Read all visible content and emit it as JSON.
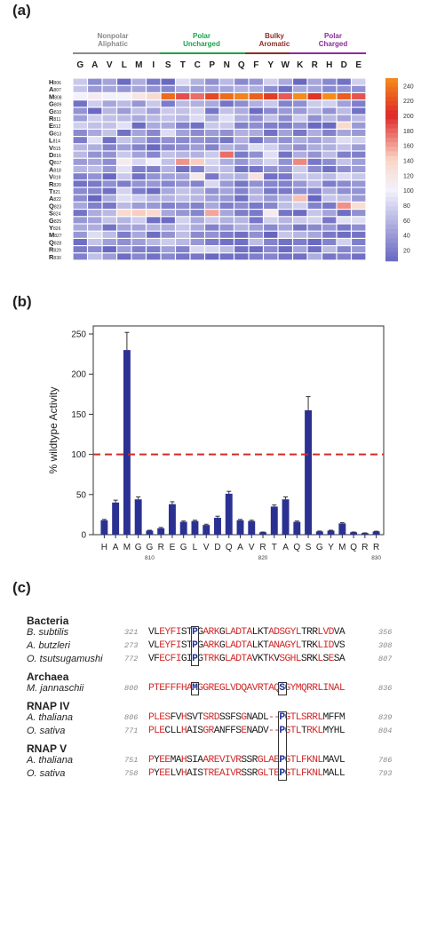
{
  "panels": {
    "a": "(a)",
    "b": "(b)",
    "c": "(c)"
  },
  "groups": [
    {
      "label": "Nonpolar Aliphatic",
      "color": "#8a8a8a"
    },
    {
      "label": "Polar Uncharged",
      "color": "#1aa34a"
    },
    {
      "label": "Bulky Aromatic",
      "color": "#8b2d26"
    },
    {
      "label": "Polar Charged",
      "color": "#8a2d9a"
    }
  ],
  "chart_data": [
    {
      "type": "heatmap",
      "columns": [
        "G",
        "A",
        "V",
        "L",
        "M",
        "I",
        "S",
        "T",
        "C",
        "P",
        "N",
        "Q",
        "F",
        "Y",
        "W",
        "K",
        "R",
        "H",
        "D",
        "E"
      ],
      "rows": [
        "H806",
        "A807",
        "M808",
        "G809",
        "G810",
        "R811",
        "E812",
        "G813",
        "L814",
        "V815",
        "D816",
        "Q817",
        "A818",
        "V819",
        "R820",
        "T821",
        "A822",
        "Q823",
        "S824",
        "G825",
        "Y826",
        "M827",
        "Q828",
        "R829",
        "R830"
      ],
      "row_letters": [
        "H",
        "A",
        "M",
        "G",
        "G",
        "R",
        "E",
        "G",
        "L",
        "V",
        "D",
        "Q",
        "A",
        "V",
        "R",
        "T",
        "A",
        "Q",
        "S",
        "G",
        "Y",
        "M",
        "Q",
        "R",
        "R"
      ],
      "row_numbers": [
        "806",
        "807",
        "808",
        "809",
        "810",
        "811",
        "812",
        "813",
        "814",
        "815",
        "816",
        "817",
        "818",
        "819",
        "820",
        "821",
        "822",
        "823",
        "824",
        "825",
        "826",
        "827",
        "828",
        "829",
        "830"
      ],
      "scale_ticks": [
        240,
        220,
        200,
        180,
        160,
        140,
        120,
        100,
        80,
        60,
        40,
        20
      ],
      "values": [
        [
          72,
          30,
          46,
          8,
          53,
          17,
          6,
          84,
          56,
          33,
          61,
          28,
          37,
          76,
          51,
          6,
          48,
          28,
          12,
          76
        ],
        [
          69,
          39,
          47,
          37,
          47,
          35,
          26,
          52,
          44,
          46,
          47,
          57,
          54,
          32,
          10,
          49,
          46,
          28,
          35,
          33
        ],
        [
          101,
          111,
          99,
          101,
          120,
          135,
          233,
          187,
          176,
          216,
          234,
          245,
          228,
          211,
          183,
          252,
          206,
          251,
          227,
          185
        ],
        [
          12,
          74,
          48,
          62,
          37,
          71,
          19,
          62,
          55,
          50,
          14,
          31,
          55,
          71,
          24,
          32,
          73,
          77,
          44,
          21
        ],
        [
          35,
          7,
          60,
          41,
          65,
          44,
          72,
          66,
          78,
          15,
          66,
          52,
          8,
          29,
          40,
          40,
          61,
          34,
          62,
          12
        ],
        [
          43,
          75,
          65,
          62,
          51,
          61,
          69,
          60,
          84,
          54,
          86,
          55,
          34,
          66,
          31,
          74,
          33,
          60,
          46,
          61
        ],
        [
          76,
          66,
          67,
          88,
          8,
          51,
          51,
          23,
          11,
          71,
          72,
          23,
          31,
          21,
          19,
          34,
          6,
          7,
          136,
          40
        ],
        [
          29,
          49,
          68,
          12,
          46,
          27,
          85,
          45,
          29,
          41,
          33,
          55,
          51,
          12,
          45,
          16,
          53,
          23,
          47,
          39
        ],
        [
          19,
          87,
          11,
          68,
          50,
          25,
          33,
          28,
          35,
          28,
          15,
          55,
          14,
          42,
          33,
          53,
          43,
          57,
          86,
          76
        ],
        [
          59,
          54,
          24,
          43,
          24,
          6,
          26,
          32,
          42,
          24,
          56,
          45,
          85,
          77,
          49,
          33,
          52,
          54,
          67,
          41
        ],
        [
          61,
          35,
          34,
          71,
          45,
          26,
          66,
          59,
          56,
          72,
          176,
          18,
          32,
          87,
          13,
          53,
          35,
          63,
          21,
          21
        ],
        [
          40,
          48,
          31,
          111,
          81,
          98,
          67,
          163,
          143,
          81,
          53,
          38,
          61,
          79,
          34,
          167,
          16,
          30,
          68,
          43
        ],
        [
          57,
          64,
          38,
          88,
          21,
          21,
          57,
          12,
          22,
          70,
          64,
          13,
          14,
          35,
          34,
          73,
          29,
          11,
          31,
          41
        ],
        [
          21,
          35,
          6,
          71,
          12,
          35,
          45,
          46,
          116,
          16,
          60,
          56,
          125,
          11,
          16,
          71,
          69,
          62,
          85,
          71
        ],
        [
          12,
          17,
          32,
          20,
          35,
          38,
          26,
          36,
          24,
          82,
          39,
          15,
          33,
          26,
          23,
          38,
          61,
          20,
          29,
          38
        ],
        [
          29,
          26,
          11,
          79,
          20,
          8,
          49,
          67,
          58,
          33,
          46,
          24,
          53,
          18,
          17,
          30,
          23,
          54,
          32,
          35
        ],
        [
          30,
          4,
          52,
          86,
          75,
          59,
          57,
          66,
          59,
          44,
          39,
          12,
          59,
          39,
          58,
          148,
          5,
          69,
          65,
          39
        ],
        [
          49,
          22,
          16,
          61,
          41,
          39,
          22,
          31,
          23,
          49,
          21,
          31,
          17,
          26,
          64,
          78,
          24,
          17,
          164,
          130
        ],
        [
          13,
          52,
          61,
          136,
          143,
          136,
          48,
          37,
          25,
          157,
          48,
          20,
          17,
          110,
          14,
          8,
          69,
          46,
          9,
          33
        ],
        [
          38,
          46,
          68,
          58,
          74,
          11,
          9,
          77,
          51,
          72,
          56,
          59,
          16,
          76,
          59,
          72,
          78,
          16,
          87,
          86
        ],
        [
          50,
          53,
          13,
          47,
          46,
          56,
          54,
          69,
          51,
          23,
          36,
          56,
          44,
          28,
          47,
          15,
          28,
          38,
          16,
          31
        ],
        [
          38,
          86,
          64,
          20,
          49,
          9,
          34,
          64,
          29,
          34,
          20,
          10,
          32,
          4,
          70,
          59,
          48,
          17,
          9,
          13
        ],
        [
          10,
          68,
          43,
          32,
          42,
          60,
          73,
          60,
          38,
          19,
          12,
          11,
          64,
          24,
          12,
          20,
          6,
          24,
          78,
          21
        ],
        [
          18,
          29,
          6,
          43,
          21,
          20,
          43,
          23,
          82,
          81,
          63,
          12,
          8,
          29,
          8,
          46,
          10,
          62,
          25,
          40
        ],
        [
          22,
          66,
          42,
          9,
          27,
          12,
          28,
          15,
          16,
          6,
          11,
          11,
          21,
          25,
          14,
          11,
          54,
          15,
          23,
          11
        ]
      ]
    },
    {
      "type": "bar",
      "categories": [
        "H",
        "A",
        "M",
        "G",
        "G",
        "R",
        "E",
        "G",
        "L",
        "V",
        "D",
        "Q",
        "A",
        "V",
        "R",
        "T",
        "A",
        "Q",
        "S",
        "G",
        "Y",
        "M",
        "Q",
        "R",
        "R"
      ],
      "positions": [
        "806",
        "807",
        "808",
        "809",
        "810",
        "811",
        "812",
        "813",
        "814",
        "815",
        "816",
        "817",
        "818",
        "819",
        "820",
        "821",
        "822",
        "823",
        "824",
        "825",
        "826",
        "827",
        "828",
        "829",
        "830"
      ],
      "values": [
        18,
        40,
        230,
        44,
        5,
        8,
        38,
        16,
        17,
        12,
        21,
        51,
        18,
        17,
        3,
        35,
        44,
        16,
        155,
        4,
        5,
        14,
        3,
        2,
        4
      ],
      "errors": [
        1,
        3,
        22,
        3,
        0.5,
        1,
        3,
        1,
        1,
        1,
        2,
        3,
        1,
        1,
        0.3,
        2,
        3,
        1,
        17,
        0.5,
        0.5,
        1,
        0.3,
        0.2,
        0.3
      ],
      "ylabel": "% wildtype Activity",
      "ylim": [
        0,
        260
      ],
      "yticks": [
        0,
        50,
        100,
        150,
        200,
        250
      ],
      "reference_line": 100,
      "x_tick_labels": [
        "810",
        "820",
        "830"
      ],
      "bar_color": "#2b3192",
      "reference_color": "#d12a2a"
    }
  ],
  "alignment": [
    {
      "section": "Bacteria",
      "rows": [
        {
          "species": "B. subtilis",
          "start": "321",
          "seq": "VLEYFISTPGARKGLADTALKTADSGYLTRRLVDVA",
          "end": "356",
          "red": [
            2,
            3,
            4,
            5,
            10,
            11,
            12,
            14,
            15,
            16,
            17,
            18,
            22,
            23,
            24,
            25,
            26,
            27,
            31,
            32,
            33
          ],
          "blue": [
            8
          ]
        },
        {
          "species": "A. butzleri",
          "start": "273",
          "seq": "VLEYFISTPGARKGLADTALKTANAGYLTRKLIDVS",
          "end": "308",
          "red": [
            2,
            3,
            4,
            5,
            10,
            11,
            12,
            14,
            15,
            16,
            17,
            18,
            22,
            23,
            24,
            25,
            26,
            27,
            31,
            32,
            33
          ],
          "blue": [
            8
          ]
        },
        {
          "species": "O. tsutsugamushi",
          "start": "772",
          "seq": "VFECFIGIPGTRKGLADTAVKTKVSGHLSRKLSESA",
          "end": "807",
          "red": [
            2,
            3,
            4,
            5,
            10,
            11,
            12,
            14,
            15,
            16,
            17,
            18,
            22,
            24,
            25,
            26,
            27,
            31,
            33
          ],
          "blue": [
            8
          ]
        }
      ]
    },
    {
      "section": "Archaea",
      "rows": [
        {
          "species": "M. jannaschii",
          "start": "800",
          "seq": "PTEFFFHAMGGREGLVDQAVRTAQSGYMQRRLINAL",
          "end": "836",
          "red": [
            0,
            1,
            2,
            3,
            4,
            5,
            6,
            7,
            9,
            10,
            11,
            12,
            13,
            14,
            15,
            16,
            17,
            18,
            19,
            20,
            21,
            22,
            23,
            25,
            26,
            27,
            28,
            29,
            30,
            31,
            32,
            33,
            34,
            35
          ],
          "blue": [
            8,
            24
          ]
        }
      ]
    },
    {
      "section": "RNAP IV",
      "rows": [
        {
          "species": "A. thaliana",
          "start": "806",
          "seq": "PLESFVHSVTSRDSSFSGNADL--PGTLSRRLMFFM",
          "end": "839",
          "red": [
            0,
            1,
            2,
            3,
            6,
            10,
            11,
            12,
            17,
            22,
            23,
            25,
            26,
            27,
            28,
            29,
            30,
            31
          ],
          "blue": [
            24
          ]
        },
        {
          "species": "O. sativa",
          "start": "771",
          "seq": "PLECLLHAISGRANFFSENADV--PGTLTRKLMYHL",
          "end": "804",
          "red": [
            0,
            1,
            2,
            6,
            10,
            11,
            17,
            22,
            23,
            25,
            26,
            27,
            29,
            30,
            31
          ],
          "blue": [
            24
          ]
        }
      ]
    },
    {
      "section": "RNAP V",
      "rows": [
        {
          "species": "A. thaliana",
          "start": "751",
          "seq": "PYEEMAHSIAAREVIVRSSRGLAEPGTLFKNLMAVL",
          "end": "786",
          "red": [
            0,
            2,
            3,
            6,
            10,
            11,
            12,
            13,
            14,
            15,
            16,
            20,
            21,
            22,
            23,
            25,
            26,
            27,
            28,
            29,
            30,
            31
          ],
          "blue": [
            24
          ]
        },
        {
          "species": "O. sativa",
          "start": "758",
          "seq": "PYEELVHAISTREAIVRSSRGLTEPGTLFKNLMALL",
          "end": "793",
          "red": [
            0,
            2,
            3,
            6,
            10,
            11,
            12,
            13,
            14,
            15,
            16,
            20,
            21,
            22,
            23,
            25,
            26,
            27,
            28,
            29,
            30,
            31
          ],
          "blue": [
            24
          ]
        }
      ]
    }
  ]
}
